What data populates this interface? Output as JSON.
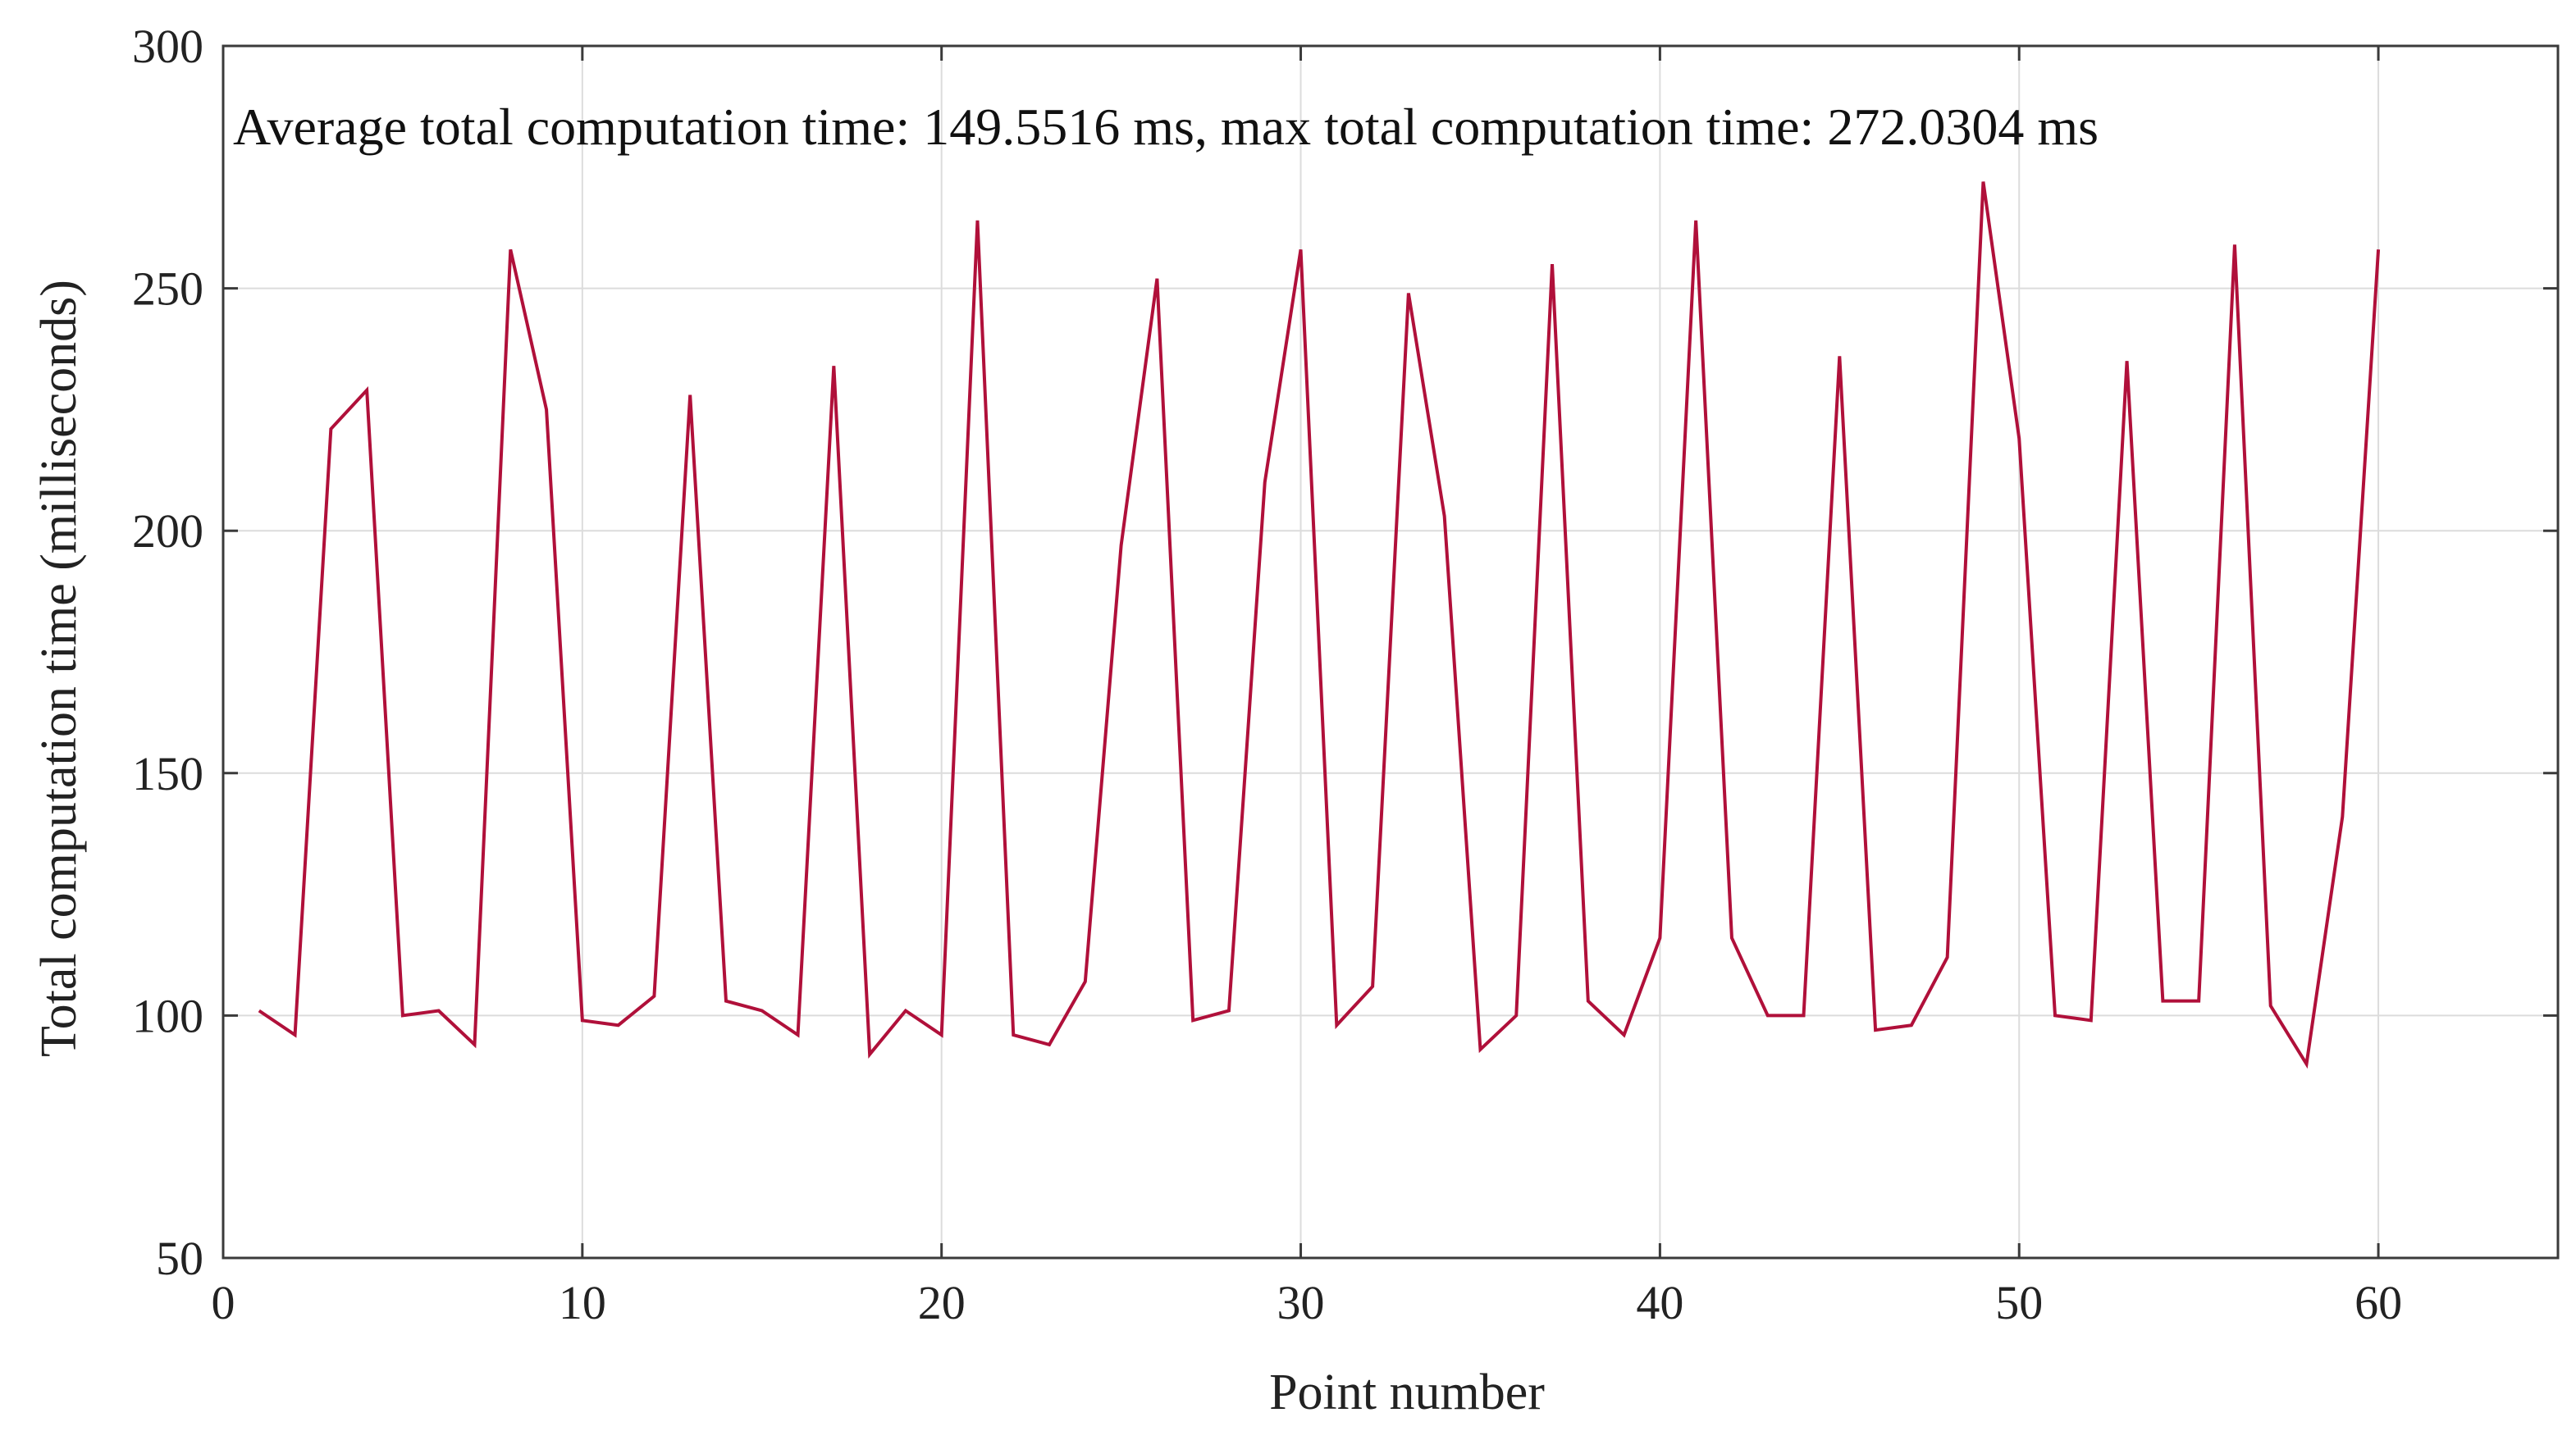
{
  "chart_data": {
    "type": "line",
    "title": "",
    "annotation": "Average total computation time:  149.5516 ms, max total computation time: 272.0304 ms",
    "xlabel": "Point number",
    "ylabel": "Total computation time (milliseconds)",
    "xlim": [
      0,
      65
    ],
    "ylim": [
      50,
      300
    ],
    "xticks": [
      0,
      10,
      20,
      30,
      40,
      50,
      60
    ],
    "yticks": [
      50,
      100,
      150,
      200,
      250,
      300
    ],
    "grid": true,
    "legend": "none",
    "line_color": "#b0103a",
    "series": [
      {
        "x": [
          1,
          2,
          3,
          4,
          5,
          6,
          7,
          8,
          9,
          10,
          11,
          12,
          13,
          14,
          15,
          16,
          17,
          18,
          19,
          20,
          21,
          22,
          23,
          24,
          25,
          26,
          27,
          28,
          29,
          30,
          31,
          32,
          33,
          34,
          35,
          36,
          37,
          38,
          39,
          40,
          41,
          42,
          43,
          44,
          45,
          46,
          47,
          48,
          49,
          50,
          51,
          52,
          53,
          54,
          55,
          56,
          57,
          58,
          59,
          60
        ],
        "values": [
          101,
          96,
          221,
          229,
          100,
          101,
          94,
          258,
          225,
          99,
          98,
          104,
          228,
          103,
          101,
          96,
          234,
          92,
          101,
          96,
          264,
          96,
          94,
          107,
          197,
          252,
          99,
          101,
          210,
          258,
          98,
          106,
          249,
          203,
          93,
          100,
          255,
          103,
          96,
          116,
          264,
          116,
          100,
          100,
          236,
          97,
          98,
          112,
          272,
          219,
          100,
          99,
          235,
          103,
          103,
          259,
          102,
          90,
          141,
          258
        ]
      }
    ]
  }
}
